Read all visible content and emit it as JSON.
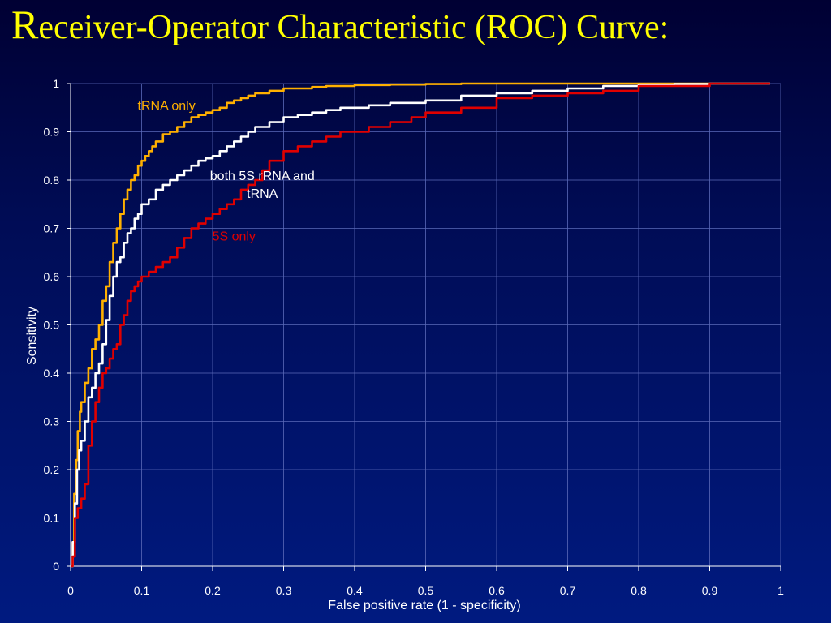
{
  "slide": {
    "title_first": "R",
    "title_rest": "eceiver-Operator Characteristic (ROC) Curve:"
  },
  "chart_data": {
    "type": "line",
    "title": "Receiver-Operator Characteristic (ROC) Curve:",
    "xlabel": "False positive rate (1 - specificity)",
    "ylabel": "Sensitivity",
    "xlim": [
      0,
      1
    ],
    "ylim": [
      0,
      1
    ],
    "xticks": [
      "0",
      "0.1",
      "0.2",
      "0.3",
      "0.4",
      "0.5",
      "0.6",
      "0.7",
      "0.8",
      "0.9",
      "1"
    ],
    "yticks": [
      "0",
      "0.1",
      "0.2",
      "0.3",
      "0.4",
      "0.5",
      "0.6",
      "0.7",
      "0.8",
      "0.9",
      "1"
    ],
    "grid": true,
    "series": [
      {
        "name": "tRNA only",
        "color": "#ffb000",
        "x": [
          0,
          0.003,
          0.005,
          0.008,
          0.01,
          0.013,
          0.015,
          0.02,
          0.025,
          0.03,
          0.035,
          0.04,
          0.045,
          0.05,
          0.055,
          0.06,
          0.065,
          0.07,
          0.075,
          0.08,
          0.085,
          0.09,
          0.095,
          0.1,
          0.105,
          0.11,
          0.115,
          0.12,
          0.13,
          0.14,
          0.15,
          0.16,
          0.17,
          0.18,
          0.19,
          0.2,
          0.21,
          0.22,
          0.23,
          0.24,
          0.25,
          0.26,
          0.28,
          0.3,
          0.32,
          0.34,
          0.36,
          0.38,
          0.4,
          0.45,
          0.5,
          0.55,
          0.6,
          0.65,
          0.7,
          0.8,
          0.9,
          0.985
        ],
        "y": [
          0,
          0.05,
          0.15,
          0.22,
          0.28,
          0.32,
          0.34,
          0.38,
          0.41,
          0.45,
          0.47,
          0.5,
          0.55,
          0.58,
          0.63,
          0.67,
          0.7,
          0.73,
          0.76,
          0.78,
          0.8,
          0.81,
          0.83,
          0.84,
          0.85,
          0.86,
          0.87,
          0.88,
          0.895,
          0.9,
          0.91,
          0.92,
          0.93,
          0.935,
          0.94,
          0.945,
          0.95,
          0.96,
          0.965,
          0.97,
          0.975,
          0.98,
          0.985,
          0.99,
          0.99,
          0.993,
          0.995,
          0.995,
          0.997,
          0.998,
          0.999,
          1.0,
          1.0,
          1.0,
          1.0,
          1.0,
          1.0,
          1.0
        ]
      },
      {
        "name": "both 5S rRNA and tRNA",
        "color": "#ffffff",
        "x": [
          0,
          0.003,
          0.006,
          0.009,
          0.012,
          0.015,
          0.02,
          0.025,
          0.03,
          0.035,
          0.04,
          0.045,
          0.05,
          0.055,
          0.06,
          0.065,
          0.07,
          0.075,
          0.08,
          0.085,
          0.09,
          0.095,
          0.1,
          0.11,
          0.12,
          0.13,
          0.14,
          0.15,
          0.16,
          0.17,
          0.18,
          0.19,
          0.2,
          0.21,
          0.22,
          0.23,
          0.24,
          0.25,
          0.26,
          0.28,
          0.3,
          0.32,
          0.34,
          0.36,
          0.38,
          0.4,
          0.42,
          0.45,
          0.5,
          0.55,
          0.6,
          0.65,
          0.7,
          0.75,
          0.8,
          0.85,
          0.9,
          0.985
        ],
        "y": [
          0,
          0.05,
          0.13,
          0.2,
          0.24,
          0.26,
          0.3,
          0.35,
          0.37,
          0.4,
          0.42,
          0.46,
          0.51,
          0.56,
          0.6,
          0.63,
          0.64,
          0.67,
          0.69,
          0.7,
          0.72,
          0.73,
          0.75,
          0.76,
          0.78,
          0.79,
          0.8,
          0.81,
          0.82,
          0.83,
          0.84,
          0.845,
          0.85,
          0.86,
          0.87,
          0.88,
          0.89,
          0.9,
          0.91,
          0.92,
          0.93,
          0.935,
          0.94,
          0.945,
          0.95,
          0.95,
          0.955,
          0.96,
          0.965,
          0.975,
          0.98,
          0.985,
          0.99,
          0.995,
          0.998,
          0.999,
          1.0,
          1.0
        ]
      },
      {
        "name": "5S only",
        "color": "#e00000",
        "x": [
          0,
          0.003,
          0.006,
          0.01,
          0.015,
          0.02,
          0.025,
          0.03,
          0.035,
          0.04,
          0.045,
          0.05,
          0.055,
          0.06,
          0.065,
          0.07,
          0.075,
          0.08,
          0.085,
          0.09,
          0.095,
          0.1,
          0.11,
          0.12,
          0.13,
          0.14,
          0.15,
          0.16,
          0.17,
          0.18,
          0.19,
          0.2,
          0.21,
          0.22,
          0.23,
          0.24,
          0.25,
          0.26,
          0.27,
          0.28,
          0.3,
          0.32,
          0.34,
          0.36,
          0.38,
          0.4,
          0.42,
          0.45,
          0.48,
          0.5,
          0.55,
          0.6,
          0.65,
          0.7,
          0.75,
          0.8,
          0.9,
          0.985
        ],
        "y": [
          0,
          0.02,
          0.1,
          0.12,
          0.14,
          0.17,
          0.25,
          0.3,
          0.34,
          0.37,
          0.4,
          0.41,
          0.43,
          0.45,
          0.46,
          0.5,
          0.52,
          0.55,
          0.57,
          0.58,
          0.59,
          0.6,
          0.61,
          0.62,
          0.63,
          0.64,
          0.66,
          0.68,
          0.7,
          0.71,
          0.72,
          0.73,
          0.74,
          0.75,
          0.76,
          0.78,
          0.79,
          0.8,
          0.82,
          0.84,
          0.86,
          0.87,
          0.88,
          0.89,
          0.9,
          0.9,
          0.91,
          0.92,
          0.93,
          0.94,
          0.95,
          0.97,
          0.975,
          0.98,
          0.985,
          0.995,
          1.0,
          1.0
        ]
      }
    ],
    "annotations": [
      {
        "lines": [
          "tRNA only"
        ],
        "color": "#ffb000",
        "x": 0.135,
        "y": 0.945
      },
      {
        "lines": [
          "both 5S rRNA and",
          "tRNA"
        ],
        "color": "#ffffff",
        "x": 0.27,
        "y": 0.8
      },
      {
        "lines": [
          "5S only"
        ],
        "color": "#e00000",
        "x": 0.23,
        "y": 0.675
      }
    ]
  }
}
